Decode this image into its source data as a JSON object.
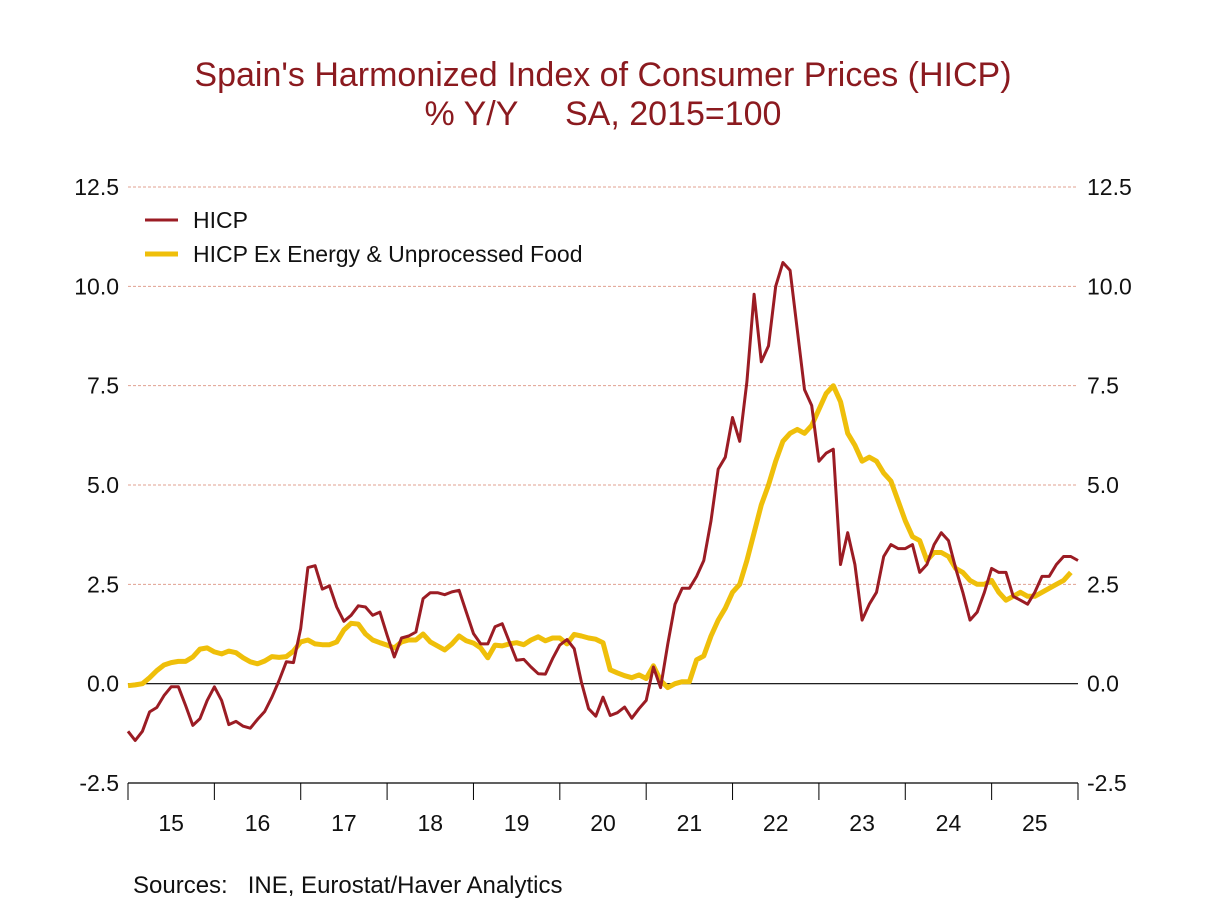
{
  "chart_data": {
    "type": "line",
    "title": "Spain's Harmonized Index of Consumer Prices (HICP)",
    "subtitle": "% Y/Y     SA, 2015=100",
    "source": "Sources:   INE, Eurostat/Haver Analytics",
    "x_start": "2014-12",
    "x_frequency": "monthly",
    "x_tick_labels": [
      "15",
      "16",
      "17",
      "18",
      "19",
      "20",
      "21",
      "22",
      "23",
      "24",
      "25"
    ],
    "y_tick_labels": [
      "12.5",
      "10.0",
      "7.5",
      "5.0",
      "2.5",
      "0.0",
      "-2.5"
    ],
    "y_ticks": [
      12.5,
      10,
      7.5,
      5,
      2.5,
      0,
      -2.5
    ],
    "ylim": [
      -2.5,
      12.5
    ],
    "grid": true,
    "legend_position": "top-left",
    "series": [
      {
        "name": "HICP",
        "color": "#9b1c24",
        "values": [
          -1.2,
          -1.43,
          -1.2,
          -0.71,
          -0.6,
          -0.3,
          -0.08,
          -0.08,
          -0.55,
          -1.05,
          -0.88,
          -0.42,
          -0.08,
          -0.42,
          -1.03,
          -0.95,
          -1.07,
          -1.12,
          -0.9,
          -0.7,
          -0.34,
          0.08,
          0.55,
          0.53,
          1.39,
          2.92,
          2.97,
          2.38,
          2.46,
          1.93,
          1.57,
          1.72,
          1.96,
          1.93,
          1.72,
          1.8,
          1.22,
          0.67,
          1.15,
          1.2,
          1.3,
          2.14,
          2.29,
          2.29,
          2.24,
          2.31,
          2.35,
          1.8,
          1.26,
          1.0,
          1.0,
          1.43,
          1.51,
          1.05,
          0.59,
          0.61,
          0.42,
          0.25,
          0.24,
          0.63,
          0.97,
          1.11,
          0.88,
          0.04,
          -0.63,
          -0.82,
          -0.34,
          -0.8,
          -0.73,
          -0.59,
          -0.87,
          -0.63,
          -0.42,
          0.42,
          -0.1,
          1.0,
          2.0,
          2.4,
          2.4,
          2.7,
          3.1,
          4.1,
          5.4,
          5.7,
          6.7,
          6.1,
          7.6,
          9.8,
          8.1,
          8.5,
          10.0,
          10.6,
          10.4,
          8.9,
          7.4,
          7.0,
          5.6,
          5.8,
          5.9,
          3.0,
          3.8,
          3.0,
          1.6,
          2.0,
          2.3,
          3.2,
          3.5,
          3.4,
          3.4,
          3.5,
          2.8,
          3.0,
          3.5,
          3.8,
          3.6,
          2.9,
          2.3,
          1.6,
          1.8,
          2.3,
          2.9,
          2.8,
          2.8,
          2.2,
          2.1,
          2.0,
          2.3,
          2.7,
          2.7,
          3.0,
          3.2,
          3.2,
          3.1
        ]
      },
      {
        "name": "HICP Ex Energy & Unprocessed Food",
        "color": "#efbf0a",
        "values": [
          -0.05,
          -0.03,
          0.0,
          0.15,
          0.33,
          0.47,
          0.53,
          0.56,
          0.56,
          0.67,
          0.87,
          0.9,
          0.8,
          0.75,
          0.82,
          0.78,
          0.65,
          0.55,
          0.5,
          0.57,
          0.68,
          0.66,
          0.68,
          0.82,
          1.05,
          1.1,
          1.0,
          0.98,
          0.98,
          1.05,
          1.35,
          1.52,
          1.5,
          1.25,
          1.1,
          1.03,
          0.97,
          0.9,
          1.05,
          1.1,
          1.1,
          1.25,
          1.05,
          0.95,
          0.85,
          1.0,
          1.2,
          1.08,
          1.02,
          0.9,
          0.65,
          0.97,
          0.95,
          1.0,
          1.03,
          0.98,
          1.1,
          1.18,
          1.08,
          1.15,
          1.15,
          1.0,
          1.24,
          1.2,
          1.15,
          1.12,
          1.03,
          0.35,
          0.27,
          0.2,
          0.15,
          0.22,
          0.13,
          0.45,
          0.08,
          -0.1,
          0.0,
          0.05,
          0.05,
          0.6,
          0.7,
          1.2,
          1.6,
          1.9,
          2.3,
          2.5,
          3.1,
          3.8,
          4.5,
          5.0,
          5.6,
          6.1,
          6.3,
          6.4,
          6.3,
          6.5,
          6.9,
          7.3,
          7.5,
          7.1,
          6.3,
          6.0,
          5.6,
          5.7,
          5.6,
          5.3,
          5.1,
          4.6,
          4.1,
          3.7,
          3.6,
          3.1,
          3.3,
          3.3,
          3.2,
          2.9,
          2.8,
          2.6,
          2.5,
          2.5,
          2.6,
          2.3,
          2.1,
          2.2,
          2.3,
          2.2,
          2.2,
          2.3,
          2.4,
          2.5,
          2.6,
          2.8
        ]
      }
    ]
  }
}
